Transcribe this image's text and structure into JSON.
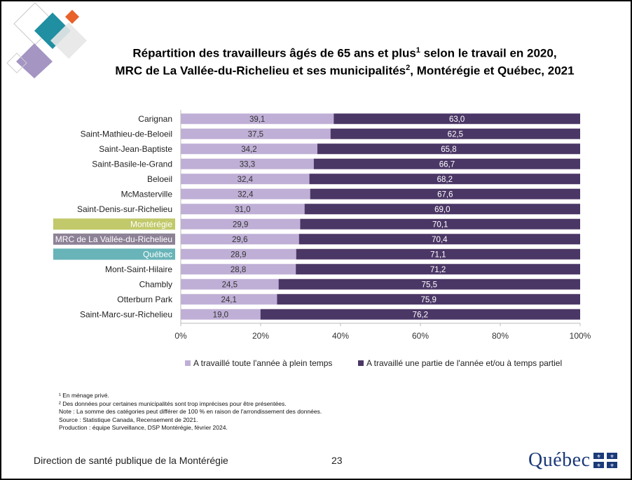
{
  "title": {
    "line1_main": "Répartition des travailleurs âgés de 65 ans et plus",
    "line1_sup": "1",
    "line1_tail": " selon le travail en 2020,",
    "line2_main": "MRC de La Vallée-du-Richelieu et ses municipalités",
    "line2_sup": "2",
    "line2_tail": ", Montérégie et Québec, 2021"
  },
  "chart_data": {
    "type": "bar",
    "orientation": "horizontal",
    "stacked": "percent",
    "categories": [
      "Carignan",
      "Saint-Mathieu-de-Beloeil",
      "Saint-Jean-Baptiste",
      "Saint-Basile-le-Grand",
      "Beloeil",
      "McMasterville",
      "Saint-Denis-sur-Richelieu",
      "Montérégie",
      "MRC de La Vallée-du-Richelieu",
      "Québec",
      "Mont-Saint-Hilaire",
      "Chambly",
      "Otterburn Park",
      "Saint-Marc-sur-Richelieu"
    ],
    "highlight": {
      "Montérégie": "#c1c96a",
      "MRC de La Vallée-du-Richelieu": "#8d8196",
      "Québec": "#68b4b8"
    },
    "series": [
      {
        "name": "A travaillé toute l'année à plein temps",
        "color": "#bfafd6",
        "values": [
          39.1,
          37.5,
          34.2,
          33.3,
          32.4,
          32.4,
          31.0,
          29.9,
          29.6,
          28.9,
          28.8,
          24.5,
          24.1,
          19.0
        ],
        "labels": [
          "39,1",
          "37,5",
          "34,2",
          "33,3",
          "32,4",
          "32,4",
          "31,0",
          "29,9",
          "29,6",
          "28,9",
          "28,8",
          "24,5",
          "24,1",
          "19,0"
        ]
      },
      {
        "name": "A travaillé une partie de l'année et/ou à temps partiel",
        "color": "#4b3766",
        "values": [
          63.0,
          62.5,
          65.8,
          66.7,
          68.2,
          67.6,
          69.0,
          70.1,
          70.4,
          71.1,
          71.2,
          75.5,
          75.9,
          76.2
        ],
        "labels": [
          "63,0",
          "62,5",
          "65,8",
          "66,7",
          "68,2",
          "67,6",
          "69,0",
          "70,1",
          "70,4",
          "71,1",
          "71,2",
          "75,5",
          "75,9",
          "76,2"
        ]
      }
    ],
    "xlim": [
      0,
      100
    ],
    "xticks": [
      "0%",
      "20%",
      "40%",
      "60%",
      "80%",
      "100%"
    ],
    "grid": false,
    "legend_position": "bottom"
  },
  "notes": [
    "¹ En ménage privé.",
    "² Des données pour certaines municipalités sont trop imprécises pour être présentées.",
    "Note : La somme des catégories peut différer de 100 % en raison de l'arrondissement des données.",
    "Source : Statistique Canada, Recensement de 2021.",
    "Production : équipe Surveillance, DSP Montérégie, février 2024."
  ],
  "footer": {
    "left": "Direction de santé publique de la Montérégie",
    "page": "23",
    "logo": "Québec"
  },
  "colors": {
    "teal": "#1f8fa1",
    "orange": "#e8622a",
    "lavender": "#a495c3",
    "quebec_blue": "#1b3a7a"
  }
}
